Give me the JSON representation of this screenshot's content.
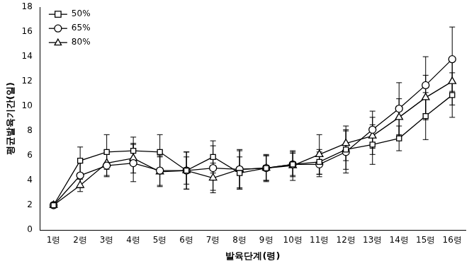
{
  "chart_data": {
    "type": "line",
    "x_label": "발육단계(령)",
    "y_label": "평균발육기간(일)",
    "categories": [
      "1령",
      "2령",
      "3령",
      "4령",
      "5령",
      "6령",
      "7령",
      "8령",
      "9령",
      "10령",
      "11령",
      "12령",
      "13령",
      "14령",
      "15령",
      "16령"
    ],
    "series": [
      {
        "name": "50%",
        "color": "#000000",
        "marker": "square",
        "values": [
          2.0,
          5.6,
          6.3,
          6.4,
          6.3,
          4.8,
          5.9,
          4.6,
          5.0,
          5.3,
          5.5,
          6.5,
          6.9,
          7.4,
          9.2,
          10.9
        ],
        "errors": [
          0.2,
          1.1,
          1.4,
          1.1,
          1.4,
          1.5,
          1.3,
          1.3,
          1.0,
          0.9,
          1.0,
          1.6,
          1.6,
          1.0,
          1.9,
          1.8
        ]
      },
      {
        "name": "65%",
        "color": "#000000",
        "marker": "circle",
        "values": [
          2.0,
          4.4,
          5.2,
          5.4,
          4.8,
          4.8,
          5.0,
          4.9,
          5.0,
          5.3,
          5.3,
          6.3,
          8.1,
          9.8,
          11.7,
          13.8
        ],
        "errors": [
          0.2,
          1.0,
          0.9,
          1.5,
          1.2,
          1.5,
          1.8,
          1.5,
          1.1,
          1.0,
          1.0,
          1.7,
          1.5,
          2.1,
          2.3,
          2.6
        ]
      },
      {
        "name": "80%",
        "color": "#000000",
        "marker": "triangle",
        "values": [
          2.0,
          3.6,
          5.4,
          5.8,
          4.7,
          4.8,
          4.2,
          4.9,
          5.0,
          5.2,
          6.1,
          7.0,
          7.6,
          9.1,
          10.7,
          12.0
        ],
        "errors": [
          0.2,
          0.5,
          1.0,
          1.2,
          1.2,
          1.1,
          1.2,
          1.6,
          1.0,
          1.2,
          1.6,
          1.4,
          1.5,
          1.5,
          1.8,
          1.9
        ]
      }
    ],
    "ylim": [
      0,
      18
    ],
    "yticks": [
      0,
      2,
      4,
      6,
      8,
      10,
      12,
      14,
      16,
      18
    ],
    "grid": false,
    "legend": "top-left"
  }
}
